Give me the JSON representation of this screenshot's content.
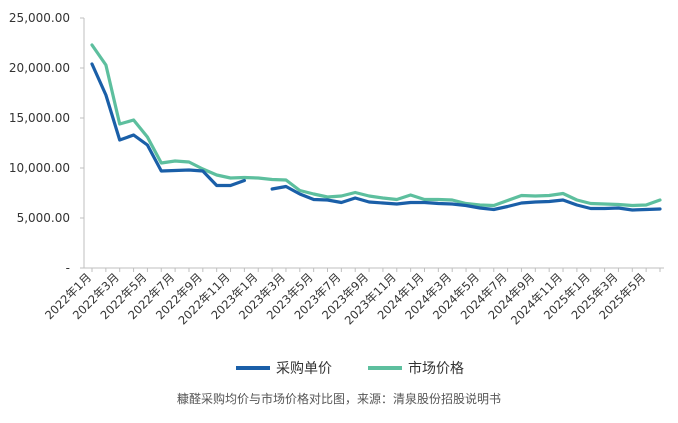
{
  "chart_data": {
    "type": "line",
    "x": [
      "2022年1月",
      "2022年2月",
      "2022年3月",
      "2022年4月",
      "2022年5月",
      "2022年6月",
      "2022年7月",
      "2022年8月",
      "2022年9月",
      "2022年10月",
      "2022年11月",
      "2022年12月",
      "2023年1月",
      "2023年2月",
      "2023年3月",
      "2023年4月",
      "2023年5月",
      "2023年6月",
      "2023年7月",
      "2023年8月",
      "2023年9月",
      "2023年10月",
      "2023年11月",
      "2023年12月",
      "2024年1月",
      "2024年2月",
      "2024年3月",
      "2024年4月",
      "2024年5月",
      "2024年6月",
      "2024年7月",
      "2024年8月",
      "2024年9月",
      "2024年10月",
      "2024年11月",
      "2024年12月",
      "2025年1月",
      "2025年2月",
      "2025年3月",
      "2025年4月",
      "2025年5月",
      "2025年6月"
    ],
    "x_tick_labels": [
      "2022年1月",
      "2022年3月",
      "2022年5月",
      "2022年7月",
      "2022年9月",
      "2022年11月",
      "2023年1月",
      "2023年3月",
      "2023年5月",
      "2023年7月",
      "2023年9月",
      "2023年11月",
      "2024年1月",
      "2024年3月",
      "2024年5月",
      "2024年7月",
      "2024年9月",
      "2024年11月",
      "2025年1月",
      "2025年3月",
      "2025年5月"
    ],
    "y_ticks": [
      "-",
      "5,000.00",
      "10,000.00",
      "15,000.00",
      "20,000.00",
      "25,000.00"
    ],
    "ylim": [
      0,
      25000
    ],
    "grid": false,
    "legend_position": "bottom",
    "series": [
      {
        "name": "采购单价",
        "color": "#1a5fa8",
        "values": [
          20400,
          17300,
          12800,
          13300,
          12300,
          9700,
          9750,
          9800,
          9700,
          8250,
          8250,
          8750,
          null,
          7900,
          8150,
          7400,
          6850,
          6800,
          6550,
          7000,
          6600,
          6500,
          6400,
          6550,
          6550,
          6450,
          6400,
          6250,
          6000,
          5850,
          6150,
          6500,
          6600,
          6650,
          6800,
          6300,
          5950,
          5950,
          6000,
          5800,
          5850,
          5900
        ],
        "values_note_gap_index": 12
      },
      {
        "name": "市场价格",
        "color": "#5dbf9e",
        "values": [
          22300,
          20300,
          14400,
          14800,
          13100,
          10500,
          10700,
          10600,
          9900,
          9300,
          9000,
          9050,
          9000,
          8850,
          8800,
          7750,
          7400,
          7100,
          7200,
          7550,
          7200,
          7000,
          6850,
          7300,
          6850,
          6850,
          6800,
          6450,
          6300,
          6250,
          6750,
          7250,
          7200,
          7250,
          7450,
          6800,
          6450,
          6400,
          6350,
          6250,
          6300,
          6800
        ]
      }
    ]
  },
  "caption": "糠醛采购均价与市场价格对比图，来源：清泉股份招股说明书"
}
